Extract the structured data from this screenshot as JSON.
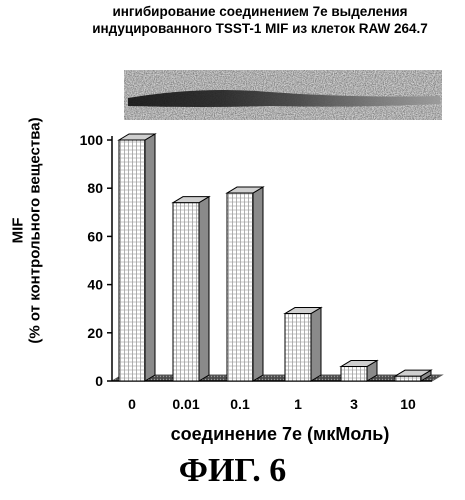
{
  "header": {
    "title_line1": "ингибирование соединением 7е выделения",
    "title_line2": "индуцированного TSST-1 MIF из клеток RAW 264.7"
  },
  "figure_label": "ФИГ. 6",
  "chart_data": {
    "type": "bar",
    "categories": [
      "0",
      "0.01",
      "0.1",
      "1",
      "3",
      "10"
    ],
    "values": [
      100,
      74,
      78,
      28,
      6,
      2
    ],
    "xlabel": "соединение 7е (мкМоль)",
    "ylabel_line1": "MIF",
    "ylabel_line2": "(% от контрольного вещества)",
    "ylim": [
      0,
      100
    ],
    "yticks": [
      "0",
      "20",
      "40",
      "60",
      "80",
      "100"
    ],
    "bar_style": "3d-hatched",
    "grid": false,
    "legend": "none"
  },
  "colors": {
    "bar_face": "#ffffff",
    "bar_hatch": "#555555",
    "bar_side": "#8a8a8a",
    "floor": "#5a5a5a",
    "axis": "#000000"
  },
  "blot_image": "western-blot-band-strip"
}
